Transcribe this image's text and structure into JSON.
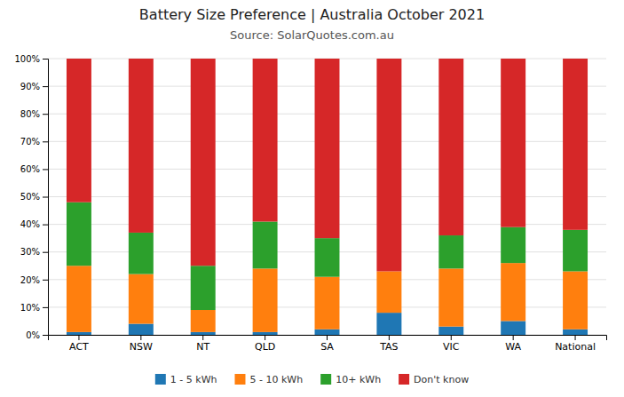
{
  "chart_data": {
    "type": "bar",
    "title": "Battery Size Preference  |  Australia October 2021",
    "subtitle": "Source: SolarQuotes.com.au",
    "categories": [
      "ACT",
      "NSW",
      "NT",
      "QLD",
      "SA",
      "TAS",
      "VIC",
      "WA",
      "National"
    ],
    "series": [
      {
        "name": "1 - 5 kWh",
        "values": [
          1,
          4,
          1,
          1,
          2,
          8,
          3,
          5,
          2
        ]
      },
      {
        "name": "5 - 10 kWh",
        "values": [
          24,
          18,
          8,
          23,
          19,
          15,
          21,
          21,
          21
        ]
      },
      {
        "name": "10+ kWh",
        "values": [
          23,
          15,
          16,
          17,
          14,
          0,
          12,
          13,
          15
        ]
      },
      {
        "name": "Don't know",
        "values": [
          52,
          63,
          75,
          59,
          65,
          77,
          64,
          61,
          62
        ]
      }
    ],
    "stacked": true,
    "ylim": [
      0,
      100
    ],
    "yticks": [
      {
        "value": 0,
        "label": "0%"
      },
      {
        "value": 10,
        "label": "10%"
      },
      {
        "value": 20,
        "label": "20%"
      },
      {
        "value": 30,
        "label": "30%"
      },
      {
        "value": 40,
        "label": "40%"
      },
      {
        "value": 50,
        "label": "50%"
      },
      {
        "value": 60,
        "label": "60%"
      },
      {
        "value": 70,
        "label": "70%"
      },
      {
        "value": 80,
        "label": "80%"
      },
      {
        "value": 90,
        "label": "90%"
      },
      {
        "value": 100,
        "label": "100%"
      }
    ],
    "grid": true,
    "legend": "bottom"
  }
}
